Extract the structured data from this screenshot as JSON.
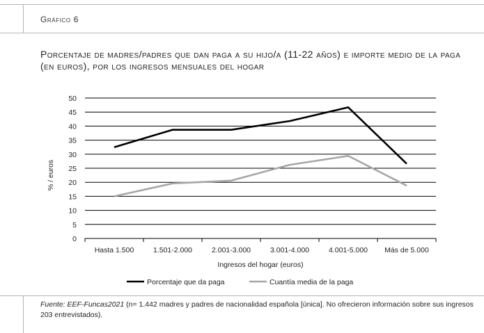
{
  "figure_label": "Gráfico 6",
  "title": "Porcentaje de madres/padres que dan paga a su hijo/a (11-22 años) e importe medio de la paga (en euros), por los ingresos mensuales del hogar",
  "source": {
    "label": "Fuente: EEF-Funcas2021",
    "text": " (n= 1.442 madres y padres de nacionalidad española [única]. No ofrecieron información sobre sus ingresos 203 entrevistados)."
  },
  "chart_data": {
    "type": "line",
    "categories": [
      "Hasta 1.500",
      "1.501-2.000",
      "2.001-3.000",
      "3.001-4.000",
      "4.001-5.000",
      "Más de 5.000"
    ],
    "series": [
      {
        "name": "Porcentaje que da paga",
        "values": [
          32.5,
          38.7,
          38.7,
          41.8,
          46.7,
          26.6
        ],
        "color": "#000000"
      },
      {
        "name": "Cuantía media de la paga",
        "values": [
          15.0,
          19.6,
          20.6,
          26.2,
          29.4,
          18.8
        ],
        "color": "#a6a6a6"
      }
    ],
    "xlabel": "Ingresos del hogar (euros)",
    "ylabel": "% / euros",
    "ylim": [
      0,
      50
    ],
    "yticks": [
      0,
      5,
      10,
      15,
      20,
      25,
      30,
      35,
      40,
      45,
      50
    ],
    "grid": true,
    "legend_position": "bottom"
  }
}
